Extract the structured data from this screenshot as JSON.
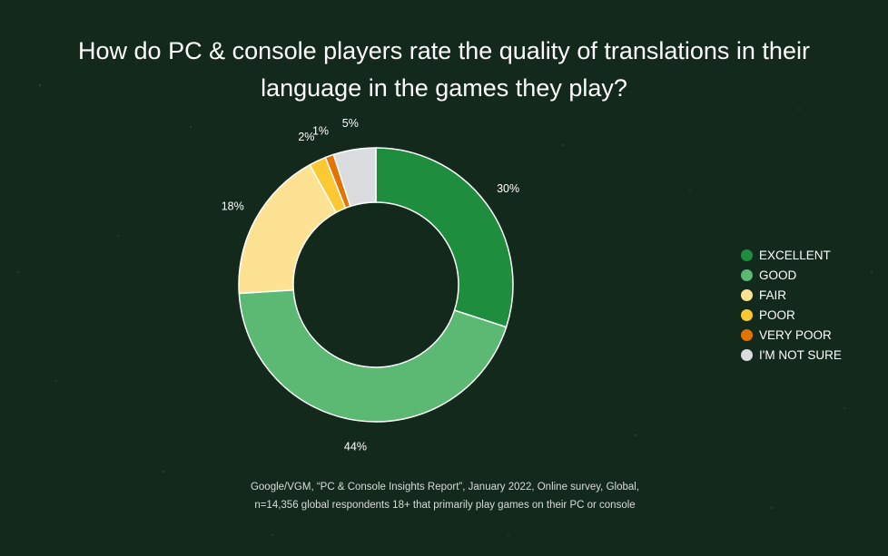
{
  "chart_data": {
    "type": "pie",
    "title": "How do PC & console players rate the quality of translations in their language in the games they play?",
    "categories": [
      "EXCELLENT",
      "GOOD",
      "FAIR",
      "POOR",
      "VERY POOR",
      "I'M NOT SURE"
    ],
    "values": [
      30,
      44,
      18,
      2,
      1,
      5
    ],
    "labels": [
      "30%",
      "44%",
      "18%",
      "2%",
      "1%",
      "5%"
    ],
    "colors": [
      "#1e8e3e",
      "#5bb974",
      "#fde293",
      "#fcc934",
      "#e37400",
      "#dadce0"
    ],
    "legend_position": "right",
    "donut": true
  },
  "source": {
    "line1": "Google/VGM, “PC & Console Insights Report”, January 2022, Online survey, Global,",
    "line2": "n=14,356 global respondents 18+ that primarily play games on their PC or console"
  },
  "colors": {
    "background": "#13291b",
    "text": "#ffffff"
  }
}
